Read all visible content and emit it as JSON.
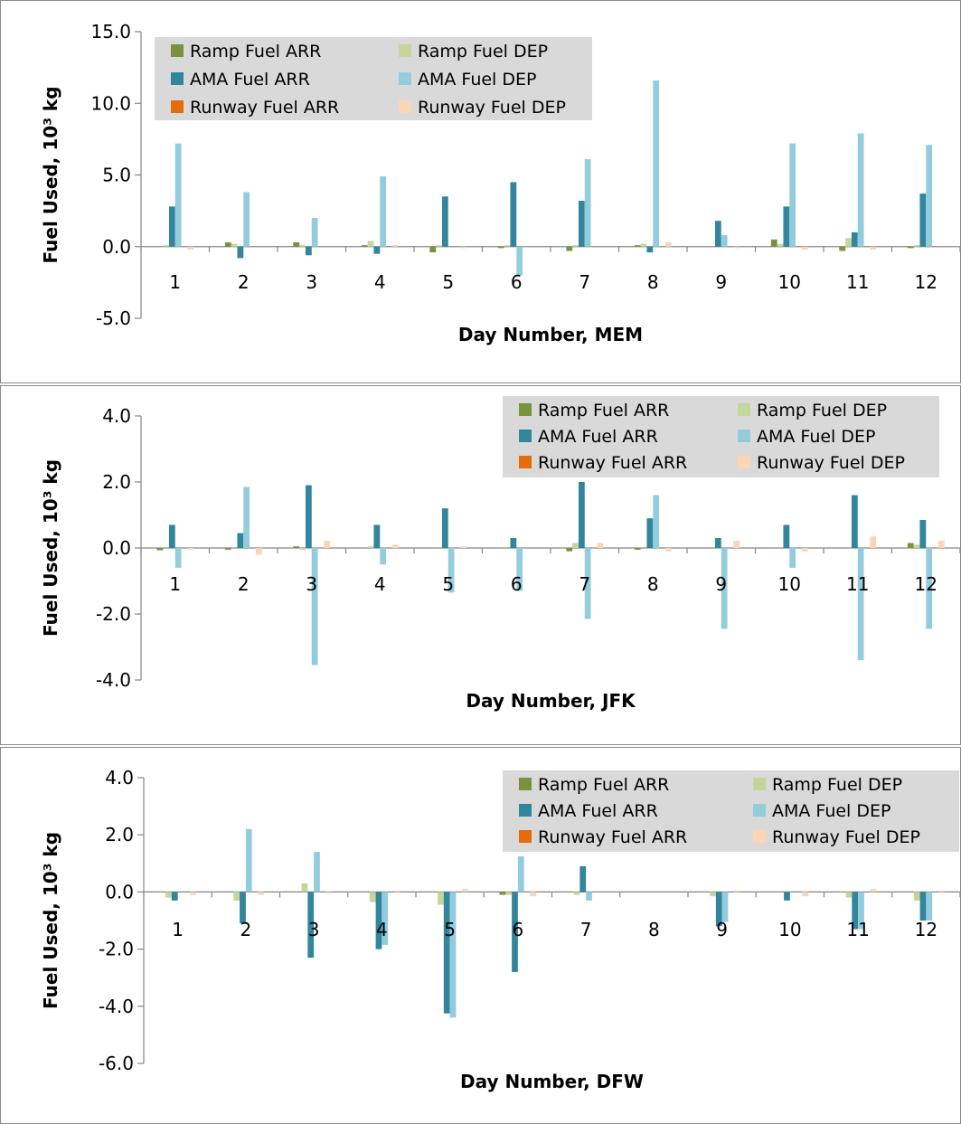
{
  "legend_labels": [
    "Ramp Fuel ARR",
    "Ramp Fuel DEP",
    "AMA Fuel ARR",
    "AMA Fuel DEP",
    "Runway Fuel ARR",
    "Runway Fuel DEP"
  ],
  "series_colors": [
    "#77933c",
    "#c3d69b",
    "#31859c",
    "#93cddd",
    "#e46c0a",
    "#fcd5b5"
  ],
  "legend_background": "#d9d9d9",
  "chart_data": [
    {
      "type": "bar",
      "ylabel": "Fuel Used, 10³ kg",
      "xlabel": "Day Number, MEM",
      "categories": [
        "1",
        "2",
        "3",
        "4",
        "5",
        "6",
        "7",
        "8",
        "9",
        "10",
        "11",
        "12"
      ],
      "ylim": [
        -5,
        15
      ],
      "yticks": [
        15,
        10,
        5,
        0,
        -5
      ],
      "ytick_labels": [
        "15.0",
        "10.0",
        "5.0",
        "0.0",
        "-5.0"
      ],
      "legend_position": "top-left",
      "series": [
        {
          "name": "Ramp Fuel ARR",
          "values": [
            0.0,
            0.3,
            0.3,
            0.1,
            -0.4,
            -0.1,
            -0.3,
            0.1,
            0.0,
            0.5,
            -0.3,
            -0.1
          ]
        },
        {
          "name": "Ramp Fuel DEP",
          "values": [
            0.1,
            0.2,
            0.1,
            0.4,
            0.1,
            0.1,
            0.1,
            0.2,
            0.0,
            0.2,
            0.6,
            0.1
          ]
        },
        {
          "name": "AMA Fuel ARR",
          "values": [
            2.8,
            -0.8,
            -0.6,
            -0.5,
            3.5,
            4.5,
            3.2,
            -0.4,
            1.8,
            2.8,
            1.0,
            3.7
          ]
        },
        {
          "name": "AMA Fuel DEP",
          "values": [
            7.2,
            3.8,
            2.0,
            4.9,
            0.0,
            -2.0,
            6.1,
            11.6,
            0.8,
            7.2,
            7.9,
            7.1
          ]
        },
        {
          "name": "Runway Fuel ARR",
          "values": [
            0.0,
            0.0,
            0.0,
            0.0,
            0.0,
            0.0,
            0.0,
            0.0,
            0.0,
            0.0,
            0.0,
            0.0
          ]
        },
        {
          "name": "Runway Fuel DEP",
          "values": [
            -0.2,
            0.0,
            0.0,
            0.1,
            -0.1,
            0.0,
            0.0,
            0.3,
            -0.1,
            -0.2,
            -0.2,
            0.0
          ]
        }
      ]
    },
    {
      "type": "bar",
      "ylabel": "Fuel Used, 10³ kg",
      "xlabel": "Day Number, JFK",
      "categories": [
        "1",
        "2",
        "3",
        "4",
        "5",
        "6",
        "7",
        "8",
        "9",
        "10",
        "11",
        "12"
      ],
      "ylim": [
        -4,
        4
      ],
      "yticks": [
        4,
        2,
        0,
        -2,
        -4
      ],
      "ytick_labels": [
        "4.0",
        "2.0",
        "0.0",
        "-2.0",
        "-4.0"
      ],
      "legend_position": "top-right",
      "series": [
        {
          "name": "Ramp Fuel ARR",
          "values": [
            -0.07,
            -0.05,
            0.05,
            0.0,
            0.0,
            0.0,
            -0.1,
            -0.05,
            0.0,
            0.0,
            0.0,
            0.15
          ]
        },
        {
          "name": "Ramp Fuel DEP",
          "values": [
            0.0,
            0.0,
            -0.05,
            0.05,
            0.0,
            0.0,
            0.15,
            0.0,
            0.0,
            0.0,
            0.0,
            0.1
          ]
        },
        {
          "name": "AMA Fuel ARR",
          "values": [
            0.7,
            0.45,
            1.9,
            0.7,
            1.2,
            0.3,
            2.0,
            0.9,
            0.3,
            0.7,
            1.6,
            0.85
          ]
        },
        {
          "name": "AMA Fuel DEP",
          "values": [
            -0.6,
            1.85,
            -3.55,
            -0.5,
            -1.35,
            -1.3,
            -2.15,
            1.6,
            -2.45,
            -0.6,
            -3.4,
            -2.45
          ]
        },
        {
          "name": "Runway Fuel ARR",
          "values": [
            0.0,
            0.0,
            0.0,
            0.0,
            0.0,
            0.0,
            0.0,
            0.0,
            0.0,
            0.0,
            0.0,
            0.0
          ]
        },
        {
          "name": "Runway Fuel DEP",
          "values": [
            -0.05,
            -0.2,
            0.22,
            0.1,
            0.05,
            0.0,
            0.15,
            -0.1,
            0.22,
            -0.1,
            0.35,
            0.22
          ]
        }
      ]
    },
    {
      "type": "bar",
      "ylabel": "Fuel Used, 10³ kg",
      "xlabel": "Day Number, DFW",
      "categories": [
        "1",
        "2",
        "3",
        "4",
        "5",
        "6",
        "7",
        "8",
        "9",
        "10",
        "11",
        "12"
      ],
      "ylim": [
        -6,
        4
      ],
      "yticks": [
        4,
        2,
        0,
        -2,
        -4,
        -6
      ],
      "ytick_labels": [
        "4.0",
        "2.0",
        "0.0",
        "-2.0",
        "-4.0",
        "-6.0"
      ],
      "legend_position": "top-right",
      "series": [
        {
          "name": "Ramp Fuel ARR",
          "values": [
            0.0,
            0.0,
            0.0,
            0.0,
            0.0,
            -0.1,
            0.0,
            0.0,
            0.0,
            0.0,
            0.0,
            0.0
          ]
        },
        {
          "name": "Ramp Fuel DEP",
          "values": [
            -0.2,
            -0.3,
            0.3,
            -0.35,
            -0.45,
            -0.1,
            -0.1,
            0.0,
            -0.15,
            0.0,
            -0.2,
            -0.3
          ]
        },
        {
          "name": "AMA Fuel ARR",
          "values": [
            -0.3,
            -1.1,
            -2.3,
            -2.0,
            -4.25,
            -2.8,
            0.9,
            0.0,
            -1.2,
            -0.3,
            -1.3,
            -1.0
          ]
        },
        {
          "name": "AMA Fuel DEP",
          "values": [
            0.0,
            2.2,
            1.4,
            -1.85,
            -4.4,
            1.25,
            -0.3,
            0.0,
            -1.05,
            0.0,
            -1.3,
            -1.0
          ]
        },
        {
          "name": "Runway Fuel ARR",
          "values": [
            0.0,
            0.0,
            0.0,
            0.0,
            0.0,
            0.0,
            0.0,
            0.0,
            0.0,
            0.0,
            0.0,
            0.0
          ]
        },
        {
          "name": "Runway Fuel DEP",
          "values": [
            -0.1,
            -0.1,
            -0.05,
            0.05,
            0.1,
            -0.15,
            0.0,
            0.0,
            0.05,
            -0.15,
            0.1,
            0.05
          ]
        }
      ]
    }
  ]
}
